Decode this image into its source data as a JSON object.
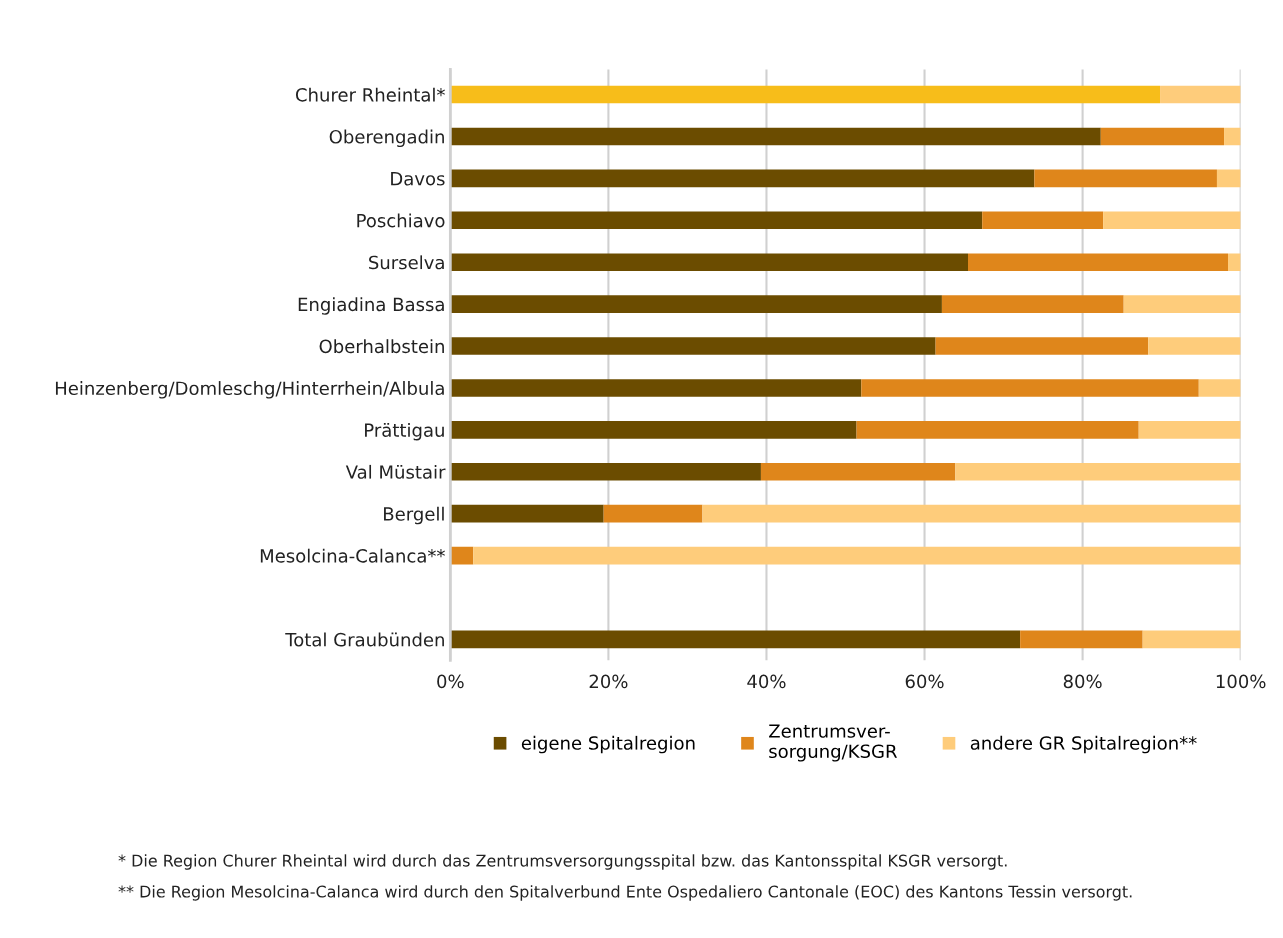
{
  "chart_data": {
    "type": "bar",
    "orientation": "horizontal",
    "stacked": true,
    "categories": [
      "Churer Rheintal*",
      "Oberengadin",
      "Davos",
      "Poschiavo",
      "Surselva",
      "Engiadina Bassa",
      "Oberhalbstein",
      "Heinzenberg/Domleschg/Hinterrhein/Albula",
      "Prättigau",
      "Val Müstair",
      "Bergell",
      "Mesolcina-Calanca**",
      null,
      "Total Graubünden"
    ],
    "series": [
      {
        "name": "eigene Spitalregion",
        "color": "#6b4c00",
        "colors": [
          "#f7bd1a",
          "#6b4c00",
          "#6b4c00",
          "#6b4c00",
          "#6b4c00",
          "#6b4c00",
          "#6b4c00",
          "#6b4c00",
          "#6b4c00",
          "#6b4c00",
          "#6b4c00",
          "#6b4c00",
          "#6b4c00",
          "#6b4c00"
        ],
        "values": [
          89.8,
          82.3,
          73.9,
          67.3,
          65.5,
          62.2,
          61.4,
          52.0,
          51.4,
          39.3,
          19.4,
          0,
          null,
          72.1
        ]
      },
      {
        "name": "Zentrumsver-\nsorgung/KSGR",
        "color": "#df861b",
        "values": [
          0,
          15.6,
          23.1,
          15.3,
          32.9,
          23.0,
          26.9,
          42.7,
          35.7,
          24.6,
          12.5,
          2.9,
          null,
          15.5
        ]
      },
      {
        "name": "andere GR Spitalregion**",
        "color": "#fecc7b",
        "values": [
          10.2,
          2.1,
          3.0,
          17.4,
          1.6,
          14.8,
          11.7,
          5.3,
          12.9,
          36.1,
          68.1,
          97.1,
          null,
          12.4
        ]
      }
    ],
    "xlim": [
      0,
      100
    ],
    "xticks": [
      {
        "value": 0,
        "label": "0%"
      },
      {
        "value": 20,
        "label": "20%"
      },
      {
        "value": 40,
        "label": "40%"
      },
      {
        "value": 60,
        "label": "60%"
      },
      {
        "value": 80,
        "label": "80%"
      },
      {
        "value": 100,
        "label": "100%"
      }
    ],
    "grid": "x",
    "legend": "bottom",
    "annotations": [
      "* Die Region Churer Rheintal wird durch das Zentrumsversorgungsspital bzw. das Kantonsspital KSGR versorgt.",
      "** Die Region Mesolcina-Calanca wird durch den Spitalverbund Ente Ospedaliero Cantonale (EOC) des Kantons Tessin versorgt."
    ]
  }
}
